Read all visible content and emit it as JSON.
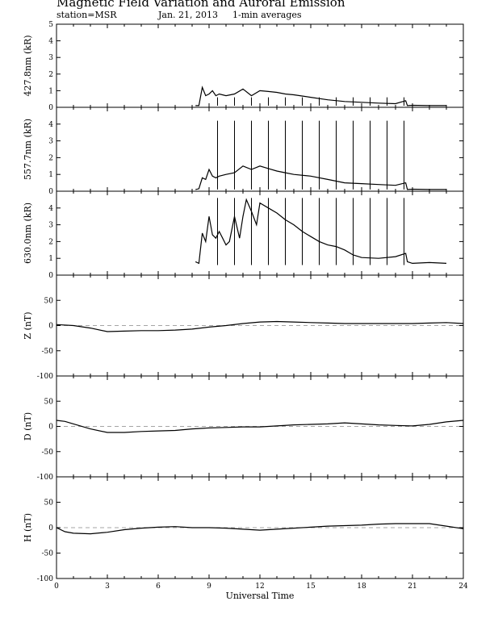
{
  "header": {
    "title": "Magnetic Field Variation and Auroral Emission",
    "station": "station=MSR",
    "date": "Jan. 21, 2013",
    "averaging": "1-min averages"
  },
  "chart_data": [
    {
      "type": "line",
      "ylabel": "427.8nm (kR)",
      "ylim": [
        0,
        5
      ],
      "yticks": [
        "0",
        "1",
        "2",
        "3",
        "4",
        "5"
      ],
      "x": [
        8.2,
        8.4,
        8.6,
        8.8,
        9.0,
        9.2,
        9.4,
        9.6,
        10.0,
        10.5,
        11.0,
        11.5,
        12.0,
        12.5,
        13.0,
        13.5,
        14.0,
        15.0,
        16.0,
        17.0,
        18.0,
        19.0,
        20.0,
        20.6,
        20.7,
        21.0,
        22.0,
        23.0
      ],
      "y": [
        0.1,
        0.1,
        1.2,
        0.7,
        0.8,
        1.0,
        0.7,
        0.8,
        0.7,
        0.8,
        1.1,
        0.7,
        1.0,
        0.95,
        0.9,
        0.8,
        0.75,
        0.6,
        0.45,
        0.35,
        0.3,
        0.25,
        0.22,
        0.4,
        0.1,
        0.12,
        0.1,
        0.1
      ],
      "spikes_x": [
        9.5,
        10.5,
        11.5,
        12.5,
        13.5,
        14.5,
        15.5,
        16.5,
        17.5,
        18.5,
        19.5,
        20.5
      ],
      "spike_y": 0.6
    },
    {
      "type": "line",
      "ylabel": "557.7nm (kR)",
      "ylim": [
        0,
        5
      ],
      "yticks": [
        "0",
        "1",
        "2",
        "3",
        "4"
      ],
      "x": [
        8.2,
        8.4,
        8.6,
        8.8,
        9.0,
        9.2,
        9.4,
        9.6,
        10.0,
        10.5,
        11.0,
        11.5,
        12.0,
        12.5,
        13.0,
        13.5,
        14.0,
        15.0,
        16.0,
        17.0,
        18.0,
        19.0,
        20.0,
        20.6,
        20.7,
        21.0,
        22.0,
        23.0
      ],
      "y": [
        0.1,
        0.15,
        0.8,
        0.7,
        1.3,
        0.9,
        0.8,
        0.9,
        1.0,
        1.1,
        1.5,
        1.3,
        1.5,
        1.35,
        1.2,
        1.1,
        1.0,
        0.9,
        0.7,
        0.5,
        0.45,
        0.4,
        0.35,
        0.5,
        0.1,
        0.12,
        0.1,
        0.1
      ],
      "spikes_x": [
        9.5,
        10.5,
        11.5,
        12.5,
        13.5,
        14.5,
        15.5,
        16.5,
        17.5,
        18.5,
        19.5,
        20.5
      ],
      "spike_y": 4.2
    },
    {
      "type": "line",
      "ylabel": "630.0nm (kR)",
      "ylim": [
        0,
        5
      ],
      "yticks": [
        "0",
        "1",
        "2",
        "3",
        "4"
      ],
      "x": [
        8.2,
        8.4,
        8.6,
        8.8,
        9.0,
        9.2,
        9.4,
        9.6,
        9.8,
        10.0,
        10.2,
        10.5,
        10.8,
        11.0,
        11.2,
        11.5,
        11.8,
        12.0,
        12.5,
        13.0,
        13.5,
        14.0,
        14.5,
        15.0,
        15.5,
        16.0,
        16.5,
        17.0,
        17.5,
        18.0,
        19.0,
        20.0,
        20.6,
        20.7,
        21.0,
        22.0,
        23.0
      ],
      "y": [
        0.8,
        0.7,
        2.5,
        2.0,
        3.5,
        2.4,
        2.2,
        2.6,
        2.2,
        1.8,
        2.0,
        3.5,
        2.2,
        3.5,
        4.5,
        3.8,
        3.0,
        4.3,
        4.0,
        3.7,
        3.3,
        3.0,
        2.6,
        2.3,
        2.0,
        1.8,
        1.7,
        1.5,
        1.2,
        1.05,
        1.0,
        1.1,
        1.3,
        0.8,
        0.7,
        0.75,
        0.7
      ],
      "spikes_x": [
        9.5,
        10.5,
        11.5,
        12.5,
        13.5,
        14.5,
        15.5,
        16.5,
        17.5,
        18.5,
        19.5,
        20.5
      ],
      "spike_y": 4.6,
      "spike_bottom": 0.6
    },
    {
      "type": "line",
      "ylabel": "Z (nT)",
      "ylim": [
        -100,
        100
      ],
      "yticks": [
        "-100",
        "-50",
        "0",
        "50"
      ],
      "zero_line": true,
      "x": [
        0,
        1,
        2,
        3,
        4,
        5,
        6,
        7,
        8,
        9,
        10,
        11,
        12,
        13,
        14,
        15,
        16,
        17,
        18,
        19,
        20,
        21,
        22,
        23,
        24
      ],
      "y": [
        2,
        0,
        -5,
        -12,
        -11,
        -10,
        -10,
        -9,
        -7,
        -3,
        0,
        4,
        7,
        8,
        7,
        6,
        5,
        4,
        4,
        4,
        4,
        4,
        5,
        6,
        4
      ]
    },
    {
      "type": "line",
      "ylabel": "D (nT)",
      "ylim": [
        -100,
        100
      ],
      "yticks": [
        "-100",
        "-50",
        "0",
        "50"
      ],
      "zero_line": true,
      "x": [
        0,
        0.5,
        1,
        2,
        3,
        4,
        5,
        6,
        7,
        8,
        9,
        10,
        11,
        12,
        13,
        14,
        15,
        16,
        17,
        18,
        19,
        20,
        21,
        22,
        23,
        24
      ],
      "y": [
        12,
        10,
        5,
        -5,
        -12,
        -12,
        -10,
        -9,
        -8,
        -5,
        -3,
        -2,
        -1,
        -1,
        1,
        3,
        4,
        5,
        7,
        5,
        3,
        2,
        1,
        4,
        9,
        12
      ]
    },
    {
      "type": "line",
      "ylabel": "H (nT)",
      "ylim": [
        -100,
        100
      ],
      "yticks": [
        "-100",
        "-50",
        "0",
        "50"
      ],
      "zero_line": true,
      "x": [
        0,
        0.5,
        1,
        2,
        3,
        4,
        5,
        6,
        7,
        8,
        9,
        10,
        11,
        12,
        13,
        14,
        15,
        16,
        17,
        18,
        19,
        20,
        21,
        22,
        23,
        24
      ],
      "y": [
        0,
        -8,
        -11,
        -12,
        -9,
        -4,
        -1,
        1,
        2,
        0,
        0,
        -1,
        -3,
        -5,
        -3,
        -1,
        1,
        3,
        4,
        5,
        7,
        8,
        8,
        8,
        3,
        -2
      ]
    }
  ],
  "x_axis": {
    "label": "Universal Time",
    "ticks": [
      "0",
      "3",
      "6",
      "9",
      "12",
      "15",
      "18",
      "21",
      "24"
    ],
    "xlim": [
      0,
      24
    ]
  }
}
